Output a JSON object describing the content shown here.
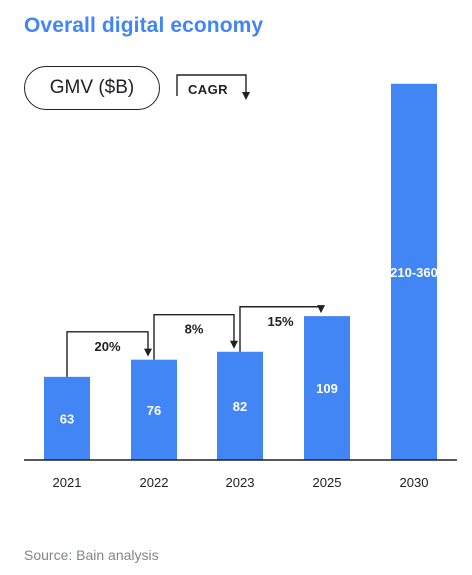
{
  "title": "Overall digital economy",
  "legend": {
    "metric_label": "GMV ($B)",
    "growth_label": "CAGR"
  },
  "source": "Source: Bain analysis",
  "colors": {
    "title": "#4285F4",
    "bar": "#4285F4",
    "bar_label": "#FFFFFF",
    "text": "#202124",
    "muted": "#80868B"
  },
  "chart_data": {
    "type": "bar",
    "categories": [
      "2021",
      "2022",
      "2023",
      "2025",
      "2030"
    ],
    "values": [
      63,
      76,
      82,
      109,
      285
    ],
    "value_labels": [
      "63",
      "76",
      "82",
      "109",
      "210-360"
    ],
    "ylim": [
      0,
      300
    ],
    "xlabel": "",
    "ylabel": "",
    "grid": false,
    "growth_annotations": [
      {
        "from": "2021",
        "to": "2022",
        "label": "20%"
      },
      {
        "from": "2022",
        "to": "2023",
        "label": "8%"
      },
      {
        "from": "2023",
        "to": "2025",
        "label": "15%"
      }
    ]
  }
}
